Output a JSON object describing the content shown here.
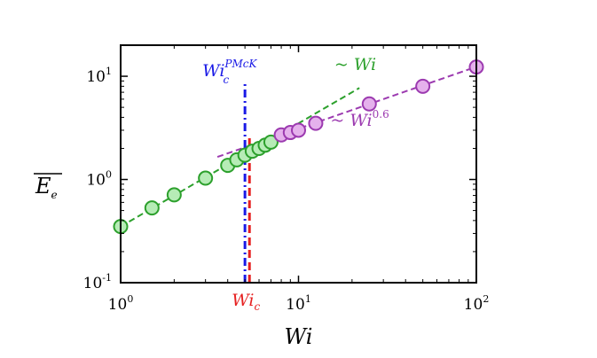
{
  "chart_data": {
    "type": "scatter",
    "x_scale": "log",
    "y_scale": "log",
    "xlim": [
      1,
      100
    ],
    "ylim": [
      0.1,
      20
    ],
    "xlabel": {
      "base": "Wi",
      "sub": "",
      "sup": ""
    },
    "ylabel": {
      "base": "E",
      "sub": "e",
      "overline": true
    },
    "x_ticks": [
      {
        "base": "10",
        "exp": "0",
        "value": 1
      },
      {
        "base": "10",
        "exp": "1",
        "value": 10
      },
      {
        "base": "10",
        "exp": "2",
        "value": 100
      }
    ],
    "y_ticks": [
      {
        "base": "10",
        "exp": "-1",
        "value": 0.1
      },
      {
        "base": "10",
        "exp": "0",
        "value": 1
      },
      {
        "base": "10",
        "exp": "1",
        "value": 10
      }
    ],
    "series": [
      {
        "color": "#2ca02c",
        "fill": "#b6ecb6",
        "points": [
          {
            "x": 1.0,
            "y": 0.35
          },
          {
            "x": 1.5,
            "y": 0.53
          },
          {
            "x": 2.0,
            "y": 0.71
          },
          {
            "x": 3.0,
            "y": 1.03
          },
          {
            "x": 4.0,
            "y": 1.37
          },
          {
            "x": 4.5,
            "y": 1.55
          },
          {
            "x": 5.0,
            "y": 1.72
          },
          {
            "x": 5.5,
            "y": 1.88
          },
          {
            "x": 6.0,
            "y": 2.0
          },
          {
            "x": 6.5,
            "y": 2.15
          },
          {
            "x": 7.0,
            "y": 2.3
          }
        ]
      },
      {
        "color": "#9c3ab0",
        "fill": "#e5b1ec",
        "points": [
          {
            "x": 8.0,
            "y": 2.7
          },
          {
            "x": 9.0,
            "y": 2.85
          },
          {
            "x": 10.0,
            "y": 3.0
          },
          {
            "x": 12.5,
            "y": 3.5
          },
          {
            "x": 25.0,
            "y": 5.4
          },
          {
            "x": 50.0,
            "y": 8.0
          },
          {
            "x": 100.0,
            "y": 12.3
          }
        ]
      }
    ],
    "fit_lines": [
      {
        "exponent": 1.0,
        "label": "~ Wi",
        "color": "#2ca02c",
        "x_range": [
          1,
          22
        ],
        "y_at_1": 0.35
      },
      {
        "exponent": 0.6,
        "label": "~ Wi^0.6",
        "color": "#9c3ab0",
        "x_range": [
          3.5,
          100
        ],
        "y_at_1": 0.78
      }
    ],
    "vlines": [
      {
        "x": 5.0,
        "style": "dashdot",
        "color": "#1a1ae6",
        "label_base": "Wi",
        "label_sub": "c",
        "label_sup": "PMcK",
        "y_top": 8.7
      },
      {
        "x": 5.3,
        "style": "dashed",
        "color": "#e62020",
        "label_base": "Wi",
        "label_sub": "c",
        "label_sup": "",
        "y_top": 2.6
      }
    ],
    "annotations": [
      {
        "prefix": "~ ",
        "base": "Wi",
        "sup": "",
        "color": "#2ca02c",
        "anchor_x": 20,
        "anchor_y": 11.5
      },
      {
        "prefix": "~ ",
        "base": "Wi",
        "sup": "0.6",
        "color": "#9c3ab0",
        "anchor_x": 19,
        "anchor_y": 3.3
      }
    ],
    "grid": false
  }
}
